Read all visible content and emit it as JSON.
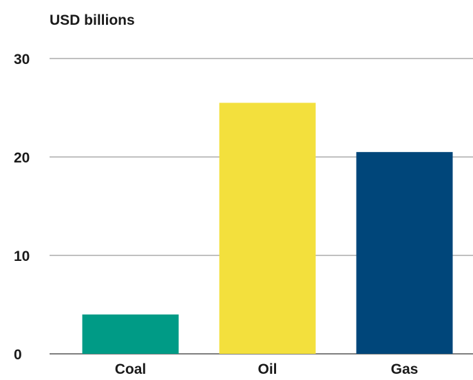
{
  "chart_data": {
    "type": "bar",
    "unit_label": "USD billions",
    "categories": [
      "Coal",
      "Oil",
      "Gas"
    ],
    "values": [
      4,
      25.5,
      20.5
    ],
    "colors": [
      "#009b86",
      "#f3e03d",
      "#00467a"
    ],
    "ylim": [
      0,
      30
    ],
    "yticks": [
      0,
      10,
      20,
      30
    ],
    "grid": true,
    "legend": "none"
  }
}
